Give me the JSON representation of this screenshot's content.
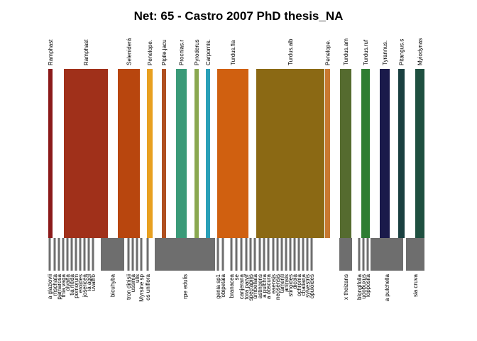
{
  "title": "Net: 65 - Castro 2007 PhD thesis_NA",
  "top_nodes": [
    {
      "label": "Ramphast",
      "color": "#8b1a1a"
    },
    {
      "label": "Ramphast",
      "color": "#a0301a"
    },
    {
      "label": "Seleniderá",
      "color": "#b8460e"
    },
    {
      "label": "Penelope.",
      "color": "#e8a020"
    },
    {
      "label": "Pipile.jacu",
      "color": "#b05020"
    },
    {
      "label": "Procnias.r",
      "color": "#3a9a78"
    },
    {
      "label": "Pyroderus",
      "color": "#8aa850"
    },
    {
      "label": "Carpornis.",
      "color": "#2aa0b8"
    },
    {
      "label": "Turdus.fla",
      "color": "#d06010"
    },
    {
      "label": "Turdus.alb",
      "color": "#8b6914"
    },
    {
      "label": "Penelope.",
      "color": "#c87830"
    },
    {
      "label": "Turdus.am",
      "color": "#556b2f"
    },
    {
      "label": "Turdus.ruf",
      "color": "#2e7d32"
    },
    {
      "label": "Tyrannus.",
      "color": "#1a1a4a"
    },
    {
      "label": "Pitangus.s",
      "color": "#1a4040"
    },
    {
      "label": "Myiodynas",
      "color": "#1f5040"
    }
  ],
  "bottom_nodes": [
    "a glaziovii",
    "mschata",
    "pamarosa",
    "thia vaga",
    "olyana",
    "tia nitida",
    "pomorum",
    "eroides",
    "josericea",
    "ia aggl",
    "uvalho",
    "bicuhyba",
    "tron dinisii",
    "ussima",
    "ulis",
    "Myrsine sp",
    "os uniflora",
    "rpe edulis",
    "genia sp1",
    "obipetala",
    "branacea",
    "se",
    "canjerana",
    "tora parvif",
    "spectabilis",
    "umbellata",
    "astingens",
    "a pulchra",
    "a obscura",
    "eaensis",
    "neosensis",
    "tamenti",
    "aninsis",
    "stinoides",
    "dicola",
    "ochroma",
    "chatiana",
    "sylvestris",
    "opuloides",
    "x theizans",
    "blongifolia",
    "udobuxus",
    "lopposita",
    "a pulchella",
    "sia cruva"
  ],
  "links": [
    [
      0,
      1
    ],
    [
      0,
      5
    ],
    [
      0,
      11
    ],
    [
      0,
      17
    ],
    [
      0,
      30
    ],
    [
      1,
      0
    ],
    [
      1,
      2
    ],
    [
      1,
      3
    ],
    [
      1,
      4
    ],
    [
      1,
      6
    ],
    [
      1,
      7
    ],
    [
      1,
      8
    ],
    [
      1,
      9
    ],
    [
      1,
      10
    ],
    [
      1,
      11
    ],
    [
      1,
      11
    ],
    [
      1,
      17
    ],
    [
      1,
      17
    ],
    [
      1,
      22
    ],
    [
      1,
      28
    ],
    [
      2,
      11
    ],
    [
      2,
      12
    ],
    [
      2,
      17
    ],
    [
      2,
      17
    ],
    [
      2,
      20
    ],
    [
      2,
      39
    ],
    [
      3,
      13
    ],
    [
      3,
      17
    ],
    [
      3,
      27
    ],
    [
      4,
      16
    ],
    [
      4,
      17
    ],
    [
      5,
      14
    ],
    [
      5,
      17
    ],
    [
      5,
      17
    ],
    [
      5,
      25
    ],
    [
      5,
      33
    ],
    [
      5,
      43
    ],
    [
      6,
      17
    ],
    [
      6,
      21
    ],
    [
      7,
      19
    ],
    [
      7,
      17
    ],
    [
      7,
      24
    ],
    [
      8,
      17
    ],
    [
      8,
      18
    ],
    [
      8,
      29
    ],
    [
      9,
      17
    ],
    [
      9,
      17
    ],
    [
      9,
      17
    ],
    [
      9,
      26
    ],
    [
      9,
      31
    ],
    [
      9,
      39
    ],
    [
      10,
      2
    ],
    [
      10,
      15
    ],
    [
      10,
      17
    ],
    [
      10,
      20
    ],
    [
      10,
      23
    ],
    [
      10,
      24
    ],
    [
      10,
      27
    ],
    [
      10,
      32
    ],
    [
      10,
      34
    ],
    [
      10,
      35
    ],
    [
      10,
      36
    ],
    [
      10,
      37
    ],
    [
      10,
      38
    ],
    [
      10,
      39
    ],
    [
      10,
      40
    ],
    [
      10,
      43
    ],
    [
      10,
      43
    ],
    [
      10,
      12
    ],
    [
      11,
      17
    ],
    [
      11,
      42
    ],
    [
      12,
      39
    ],
    [
      12,
      41
    ],
    [
      12,
      43
    ],
    [
      13,
      40
    ],
    [
      13,
      43
    ],
    [
      13,
      44
    ],
    [
      14,
      43
    ],
    [
      14,
      43
    ],
    [
      15,
      43
    ],
    [
      15,
      44
    ]
  ]
}
